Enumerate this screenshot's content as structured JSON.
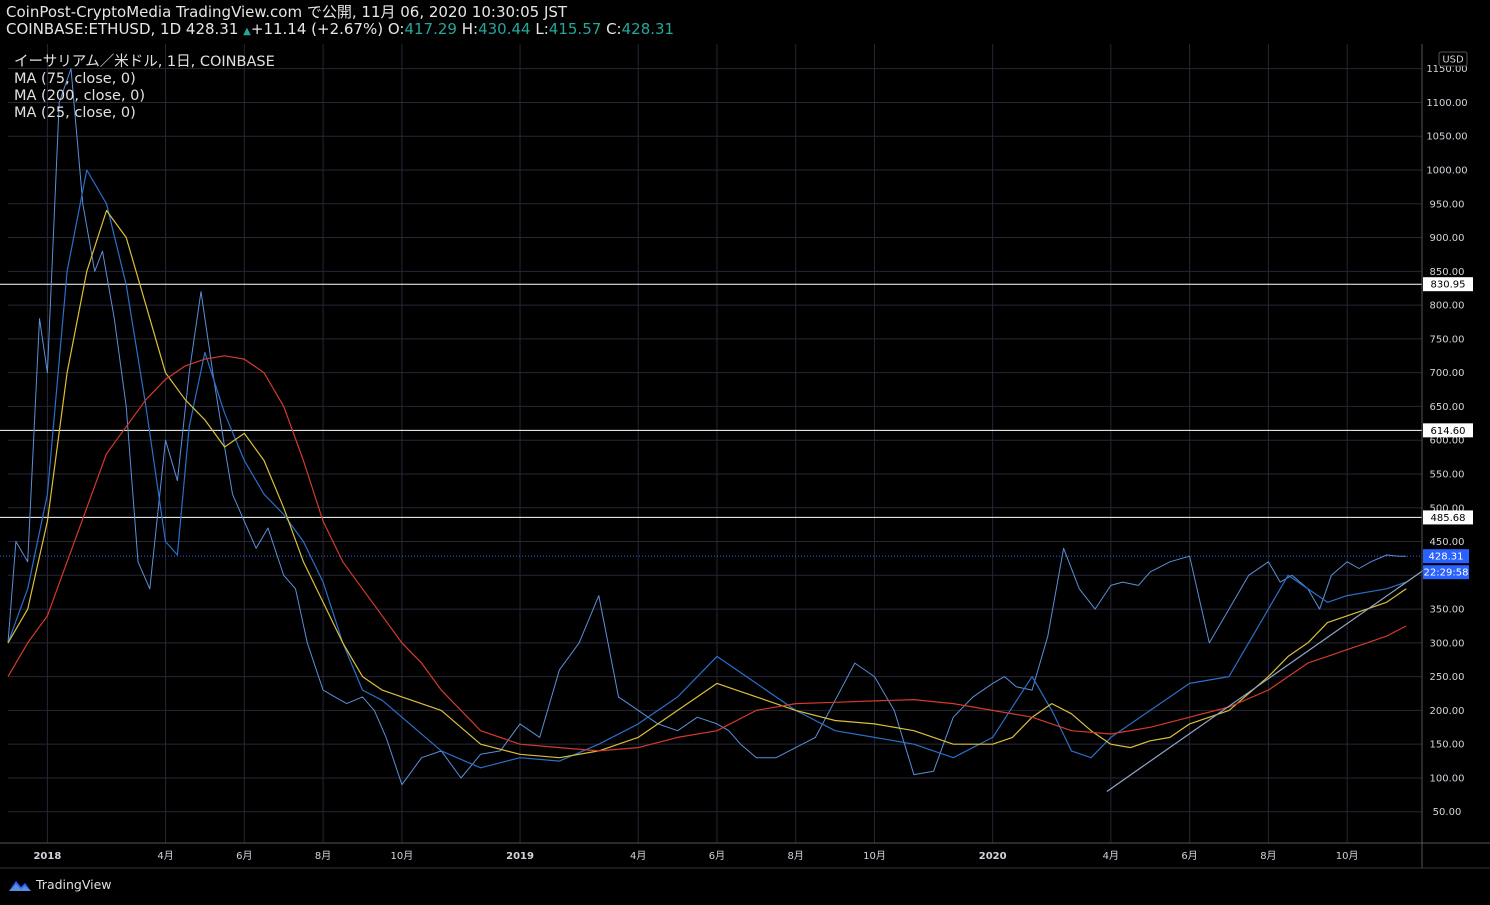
{
  "header": {
    "line1": "CoinPost-CryptoMedia TradingView.com で公開, 11月 06, 2020 10:30:05 JST",
    "symbol": "COINBASE:ETHUSD, 1D 428.31",
    "change": "+11.14 (+2.67%)",
    "o_label": "O:",
    "o": "417.29",
    "h_label": "H:",
    "h": "430.44",
    "l_label": "L:",
    "l": "415.57",
    "c_label": "C:",
    "c": "428.31"
  },
  "legend": {
    "title": "イーサリアム／米ドル, 1日, COINBASE",
    "ma1": "MA (75, close, 0)",
    "ma2": "MA (200, close, 0)",
    "ma3": "MA (25, close, 0)"
  },
  "currency_badge": "USD",
  "footer": {
    "brand": "TradingView"
  },
  "chart_data": {
    "type": "line",
    "title": "",
    "xlabel": "",
    "ylabel": "",
    "ylim": [
      0,
      1175
    ],
    "y_ticks": [
      50,
      100,
      150,
      200,
      250,
      300,
      350,
      400,
      450,
      500,
      550,
      600,
      650,
      700,
      750,
      800,
      850,
      900,
      950,
      1000,
      1050,
      1100,
      1150
    ],
    "x_ticks": [
      "2018",
      "4月",
      "6月",
      "8月",
      "10月",
      "2019",
      "4月",
      "6月",
      "8月",
      "10月",
      "2020",
      "4月",
      "6月",
      "8月",
      "10月"
    ],
    "x_tick_months": [
      12,
      15,
      17,
      19,
      21,
      24,
      27,
      29,
      31,
      33,
      36,
      39,
      41,
      43,
      45
    ],
    "horizontal_levels": [
      830.95,
      614.6,
      485.68
    ],
    "last_price": "428.31",
    "countdown": "22:29:58",
    "colors": {
      "price": "#5b8fd8",
      "ma25": "#2a6fc9",
      "ma75": "#d9c03a",
      "ma200": "#d43a2c",
      "trend": "#8fa8c8",
      "tag": "#2962ff"
    },
    "trendline": {
      "x": [
        38.9,
        47.0
      ],
      "y": [
        80,
        410
      ]
    },
    "series": [
      {
        "name": "ETHUSD",
        "x": [
          11.0,
          11.2,
          11.5,
          11.8,
          12.0,
          12.3,
          12.6,
          12.9,
          13.2,
          13.4,
          13.7,
          14.0,
          14.3,
          14.6,
          15.0,
          15.3,
          15.6,
          15.9,
          16.2,
          16.5,
          16.7,
          17.0,
          17.3,
          17.6,
          18.0,
          18.3,
          18.6,
          19.0,
          19.3,
          19.6,
          20.0,
          20.3,
          20.6,
          21.0,
          21.5,
          22.0,
          22.5,
          23.0,
          23.5,
          24.0,
          24.5,
          25.0,
          25.5,
          26.0,
          26.5,
          27.0,
          27.5,
          28.0,
          28.5,
          29.0,
          29.3,
          29.6,
          30.0,
          30.5,
          31.0,
          31.5,
          32.0,
          32.5,
          33.0,
          33.5,
          34.0,
          34.5,
          35.0,
          35.5,
          36.0,
          36.3,
          36.6,
          37.0,
          37.4,
          37.8,
          38.2,
          38.6,
          39.0,
          39.3,
          39.7,
          40.0,
          40.5,
          41.0,
          41.5,
          42.0,
          42.5,
          43.0,
          43.3,
          43.6,
          44.0,
          44.3,
          44.6,
          45.0,
          45.3,
          45.6,
          46.0,
          46.3,
          46.5
        ],
        "y": [
          300,
          450,
          420,
          780,
          700,
          1100,
          1150,
          950,
          850,
          880,
          780,
          650,
          420,
          380,
          600,
          540,
          700,
          820,
          700,
          590,
          520,
          480,
          440,
          470,
          400,
          380,
          300,
          230,
          220,
          210,
          220,
          200,
          160,
          90,
          130,
          140,
          100,
          135,
          140,
          180,
          160,
          260,
          300,
          370,
          220,
          200,
          180,
          170,
          190,
          180,
          170,
          150,
          130,
          130,
          145,
          160,
          215,
          270,
          250,
          200,
          105,
          110,
          190,
          220,
          240,
          250,
          235,
          230,
          310,
          440,
          380,
          350,
          385,
          390,
          385,
          405,
          420,
          428.31,
          300,
          350,
          400,
          420,
          390,
          400,
          380,
          350,
          400,
          420,
          410,
          420,
          430,
          428.31,
          428.31
        ]
      },
      {
        "name": "MA (25, close, 0)",
        "x": [
          11.0,
          11.5,
          12.0,
          12.5,
          13.0,
          13.5,
          14.0,
          14.5,
          15.0,
          15.3,
          15.6,
          16.0,
          16.5,
          17.0,
          17.5,
          18.0,
          18.5,
          19.0,
          19.5,
          20.0,
          20.5,
          21.0,
          22.0,
          23.0,
          24.0,
          25.0,
          26.0,
          27.0,
          28.0,
          29.0,
          30.0,
          31.0,
          32.0,
          33.0,
          34.0,
          35.0,
          36.0,
          37.0,
          37.5,
          38.0,
          38.5,
          39.0,
          39.5,
          40.0,
          41.0,
          42.0,
          43.0,
          43.5,
          44.0,
          44.5,
          45.0,
          45.5,
          46.0,
          46.5
        ],
        "y": [
          300,
          380,
          520,
          850,
          1000,
          950,
          830,
          650,
          450,
          430,
          620,
          730,
          640,
          570,
          520,
          490,
          450,
          390,
          300,
          230,
          215,
          190,
          140,
          115,
          130,
          125,
          150,
          180,
          220,
          280,
          240,
          200,
          170,
          160,
          150,
          130,
          160,
          250,
          200,
          140,
          130,
          160,
          180,
          200,
          240,
          250,
          350,
          400,
          380,
          360,
          370,
          375,
          380,
          390
        ]
      },
      {
        "name": "MA (75, close, 0)",
        "x": [
          11.0,
          11.5,
          12.0,
          12.5,
          13.0,
          13.5,
          14.0,
          14.5,
          15.0,
          15.5,
          16.0,
          16.5,
          17.0,
          17.5,
          18.0,
          18.5,
          19.0,
          19.5,
          20.0,
          20.5,
          21.0,
          22.0,
          23.0,
          24.0,
          25.0,
          26.0,
          27.0,
          28.0,
          29.0,
          30.0,
          31.0,
          32.0,
          33.0,
          34.0,
          35.0,
          36.0,
          36.5,
          37.0,
          37.5,
          38.0,
          38.5,
          39.0,
          39.5,
          40.0,
          40.5,
          41.0,
          42.0,
          43.0,
          43.5,
          44.0,
          44.5,
          45.0,
          45.5,
          46.0,
          46.5
        ],
        "y": [
          300,
          350,
          480,
          700,
          850,
          940,
          900,
          800,
          700,
          660,
          630,
          590,
          610,
          570,
          500,
          420,
          360,
          300,
          250,
          230,
          220,
          200,
          150,
          135,
          130,
          140,
          160,
          200,
          240,
          220,
          200,
          185,
          180,
          170,
          150,
          150,
          160,
          190,
          210,
          195,
          170,
          150,
          145,
          155,
          160,
          180,
          200,
          250,
          280,
          300,
          330,
          340,
          350,
          360,
          380
        ]
      },
      {
        "name": "MA (200, close, 0)",
        "x": [
          11.0,
          11.5,
          12.0,
          12.5,
          13.0,
          13.5,
          14.0,
          14.5,
          15.0,
          15.5,
          16.0,
          16.5,
          17.0,
          17.5,
          18.0,
          18.5,
          19.0,
          19.5,
          20.0,
          20.5,
          21.0,
          21.5,
          22.0,
          23.0,
          24.0,
          25.0,
          26.0,
          27.0,
          28.0,
          29.0,
          30.0,
          31.0,
          32.0,
          33.0,
          34.0,
          35.0,
          36.0,
          37.0,
          38.0,
          39.0,
          40.0,
          41.0,
          42.0,
          43.0,
          43.5,
          44.0,
          44.5,
          45.0,
          45.5,
          46.0,
          46.5
        ],
        "y": [
          250,
          300,
          340,
          420,
          500,
          580,
          620,
          660,
          690,
          710,
          720,
          725,
          720,
          700,
          650,
          570,
          480,
          420,
          380,
          340,
          300,
          270,
          230,
          170,
          150,
          145,
          140,
          145,
          160,
          170,
          200,
          210,
          212,
          214,
          216,
          210,
          200,
          190,
          170,
          165,
          175,
          190,
          205,
          230,
          250,
          270,
          280,
          290,
          300,
          310,
          325
        ]
      }
    ]
  }
}
